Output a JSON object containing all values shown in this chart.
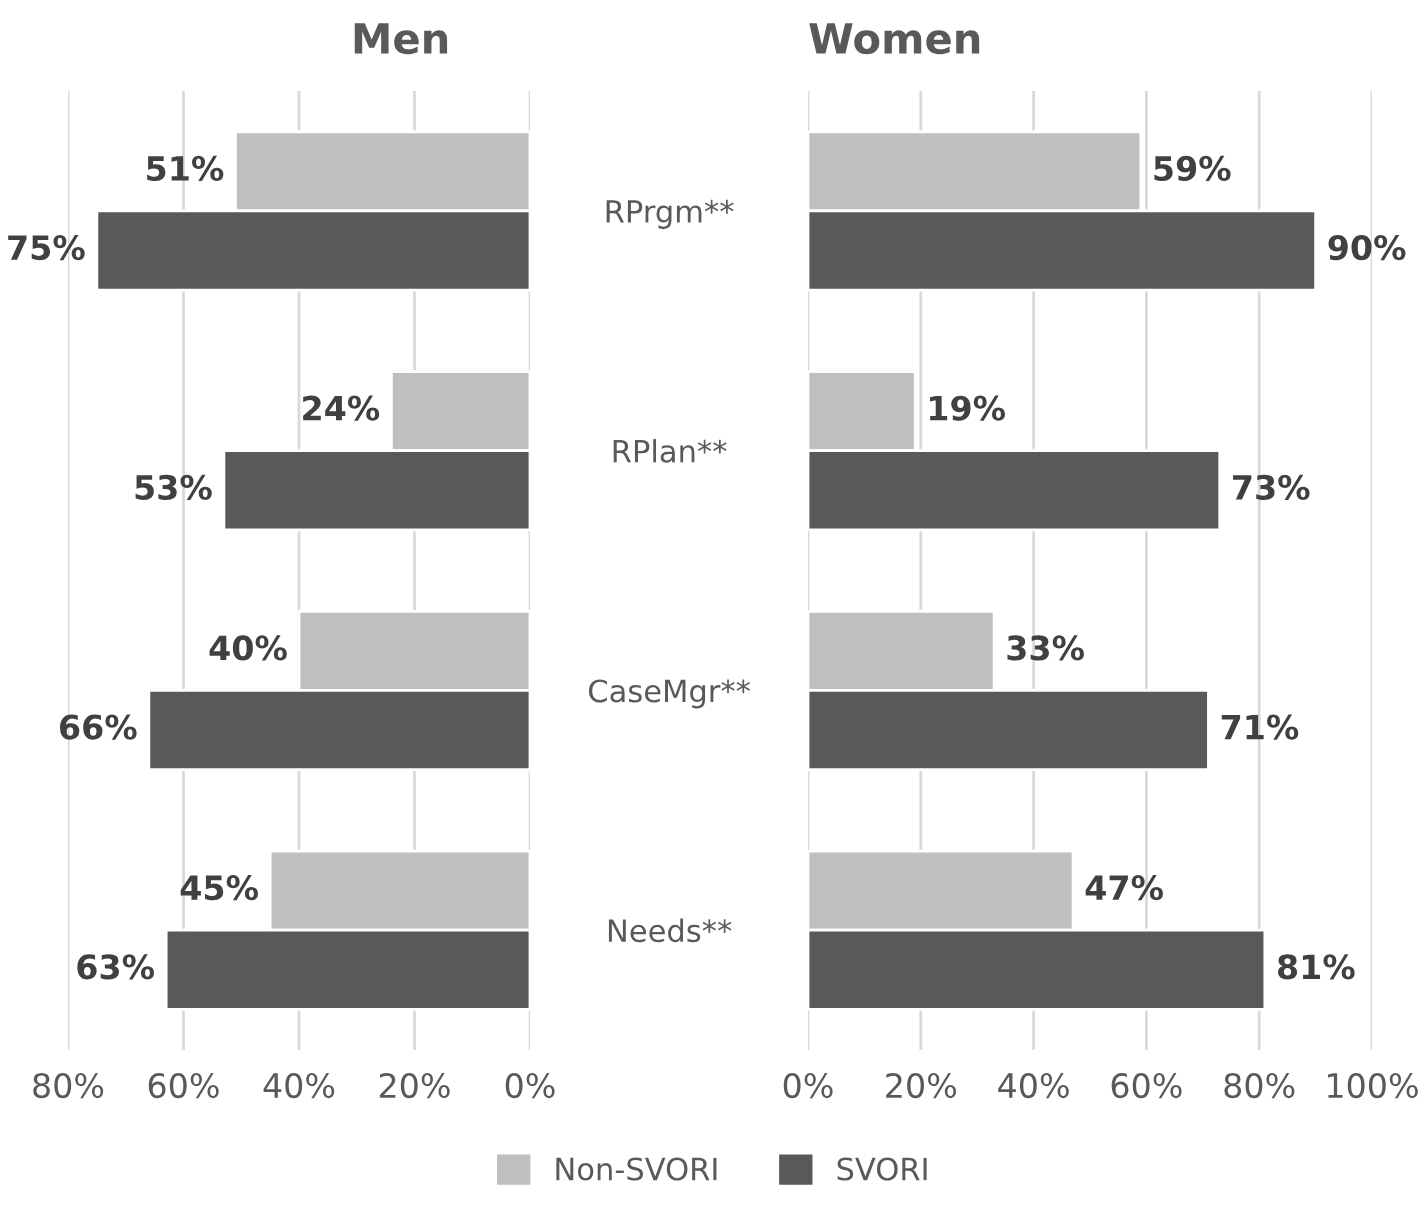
{
  "chart_data": [
    {
      "type": "bar",
      "orientation": "horizontal",
      "title": "Men",
      "categories": [
        null,
        null,
        null,
        null
      ],
      "tick_labels": "x",
      "grid": "x",
      "legend": "bottom",
      "xlim": [
        80,
        0
      ],
      "xticks": [
        {
          "value": 80,
          "label": "80%"
        },
        {
          "value": 60,
          "label": "60%"
        },
        {
          "value": 40,
          "label": "40%"
        },
        {
          "value": 20,
          "label": "20%"
        },
        {
          "value": 0,
          "label": "0%"
        }
      ],
      "series": [
        {
          "name": "Non-SVORI",
          "color": "#bfbfbf",
          "values": [
            51,
            24,
            40,
            45
          ],
          "value_labels": [
            "51%",
            "24%",
            "40%",
            "45%"
          ]
        },
        {
          "name": "SVORI",
          "color": "#595959",
          "values": [
            75,
            53,
            66,
            63
          ],
          "value_labels": [
            "75%",
            "53%",
            "66%",
            "63%"
          ]
        }
      ]
    },
    {
      "type": "bar",
      "orientation": "horizontal",
      "title": "Women",
      "categories": [
        "RPrgm**",
        "RPlan**",
        "CaseMgr**",
        "Needs**"
      ],
      "grid": "x",
      "xlim": [
        0,
        100
      ],
      "xticks": [
        {
          "value": 0,
          "label": "0%"
        },
        {
          "value": 20,
          "label": "20%"
        },
        {
          "value": 40,
          "label": "40%"
        },
        {
          "value": 60,
          "label": "60%"
        },
        {
          "value": 80,
          "label": "80%"
        },
        {
          "value": 100,
          "label": "100%"
        }
      ],
      "series": [
        {
          "color": "#bfbfbf",
          "values": [
            59,
            19,
            33,
            47
          ],
          "value_labels": [
            "59%",
            "19%",
            "33%",
            "47%"
          ]
        },
        {
          "color": "#595959",
          "values": [
            90,
            73,
            71,
            81
          ],
          "value_labels": [
            "90%",
            "73%",
            "71%",
            "81%"
          ]
        }
      ]
    }
  ]
}
